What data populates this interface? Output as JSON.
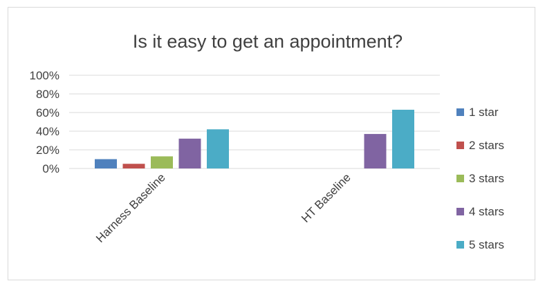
{
  "chart_data": {
    "type": "bar",
    "title": "Is it easy to get an appointment?",
    "xlabel": "",
    "ylabel": "",
    "categories": [
      "Harness Baseline",
      "HT Baseline"
    ],
    "series": [
      {
        "name": "1 star",
        "color": "#4f81bd",
        "values": [
          10,
          0
        ]
      },
      {
        "name": "2 stars",
        "color": "#c0504d",
        "values": [
          5,
          0
        ]
      },
      {
        "name": "3 stars",
        "color": "#9bbb59",
        "values": [
          13,
          0
        ]
      },
      {
        "name": "4 stars",
        "color": "#8064a2",
        "values": [
          32,
          37
        ]
      },
      {
        "name": "5 stars",
        "color": "#4bacc6",
        "values": [
          42,
          63
        ]
      }
    ],
    "ylim": [
      0,
      100
    ],
    "yticks": [
      0,
      20,
      40,
      60,
      80,
      100
    ],
    "ytick_labels": [
      "0%",
      "20%",
      "40%",
      "60%",
      "80%",
      "100%"
    ],
    "grid": true,
    "legend_position": "right"
  }
}
